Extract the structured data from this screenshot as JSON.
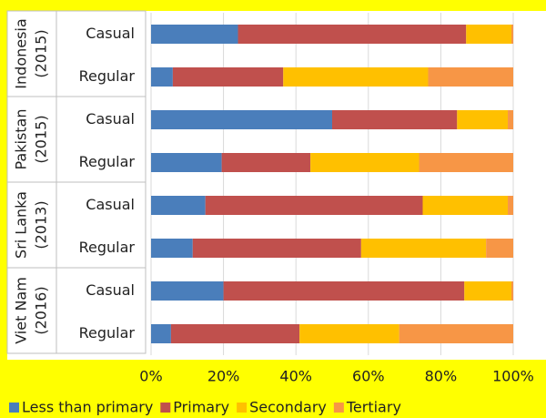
{
  "chart_data": {
    "type": "stacked-bar-horizontal",
    "groups": [
      [
        "Indonesia",
        "(2015)"
      ],
      [
        "Pakistan",
        "(2015)"
      ],
      [
        "Sri Lanka",
        "(2013)"
      ],
      [
        "Viet Nam",
        "(2016)"
      ]
    ],
    "categories": [
      "Casual",
      "Regular",
      "Casual",
      "Regular",
      "Casual",
      "Regular",
      "Casual",
      "Regular"
    ],
    "series": [
      {
        "name": "Less than primary",
        "color": "#4a7ebb",
        "values": [
          24,
          6,
          50,
          19.5,
          15,
          11.5,
          20,
          5.5
        ]
      },
      {
        "name": "Primary",
        "color": "#c0504d",
        "values": [
          63,
          30.5,
          34.5,
          24.5,
          60,
          46.5,
          66.5,
          35.5
        ]
      },
      {
        "name": "Secondary",
        "color": "#ffc000",
        "values": [
          12.5,
          40,
          14,
          30,
          23.5,
          34.5,
          13,
          27.5
        ]
      },
      {
        "name": "Tertiary",
        "color": "#f79646",
        "values": [
          0.5,
          23.5,
          1.5,
          26,
          1.5,
          7.5,
          0.5,
          31.5
        ]
      }
    ],
    "xlim": [
      0,
      100
    ],
    "xticks": [
      {
        "value": 0,
        "label": "0%"
      },
      {
        "value": 20,
        "label": "20%"
      },
      {
        "value": 40,
        "label": "40%"
      },
      {
        "value": 60,
        "label": "60%"
      },
      {
        "value": 80,
        "label": "80%"
      },
      {
        "value": 100,
        "label": "100%"
      }
    ],
    "legend": "bottom"
  }
}
